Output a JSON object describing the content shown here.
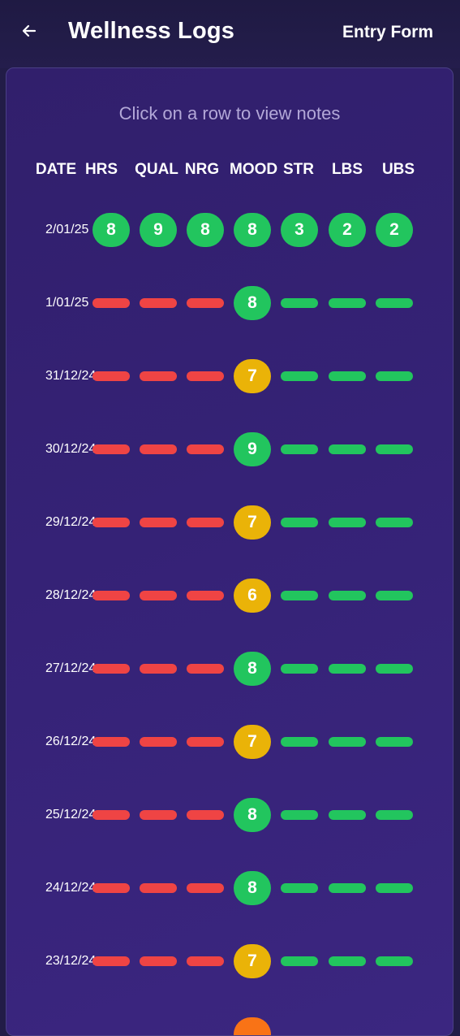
{
  "header": {
    "title": "Wellness Logs",
    "entry_label": "Entry Form",
    "back_icon": "arrow-left-icon"
  },
  "hint": "Click on a row to view notes",
  "columns": [
    "DATE",
    "HRS",
    "QUAL",
    "NRG",
    "MOOD",
    "STR",
    "LBS",
    "UBS"
  ],
  "colors": {
    "green": "#22c55e",
    "red": "#ef4444",
    "yellow": "#eab308",
    "orange": "#f97316"
  },
  "rows": [
    {
      "date": "2/01/25",
      "cells": [
        {
          "v": "8",
          "c": "green"
        },
        {
          "v": "9",
          "c": "green"
        },
        {
          "v": "8",
          "c": "green"
        },
        {
          "v": "8",
          "c": "green"
        },
        {
          "v": "3",
          "c": "green"
        },
        {
          "v": "2",
          "c": "green"
        },
        {
          "v": "2",
          "c": "green"
        }
      ]
    },
    {
      "date": "1/01/25",
      "cells": [
        {
          "v": null,
          "c": "red"
        },
        {
          "v": null,
          "c": "red"
        },
        {
          "v": null,
          "c": "red"
        },
        {
          "v": "8",
          "c": "green"
        },
        {
          "v": null,
          "c": "green"
        },
        {
          "v": null,
          "c": "green"
        },
        {
          "v": null,
          "c": "green"
        }
      ]
    },
    {
      "date": "31/12/24",
      "cells": [
        {
          "v": null,
          "c": "red"
        },
        {
          "v": null,
          "c": "red"
        },
        {
          "v": null,
          "c": "red"
        },
        {
          "v": "7",
          "c": "yellow"
        },
        {
          "v": null,
          "c": "green"
        },
        {
          "v": null,
          "c": "green"
        },
        {
          "v": null,
          "c": "green"
        }
      ]
    },
    {
      "date": "30/12/24",
      "cells": [
        {
          "v": null,
          "c": "red"
        },
        {
          "v": null,
          "c": "red"
        },
        {
          "v": null,
          "c": "red"
        },
        {
          "v": "9",
          "c": "green"
        },
        {
          "v": null,
          "c": "green"
        },
        {
          "v": null,
          "c": "green"
        },
        {
          "v": null,
          "c": "green"
        }
      ]
    },
    {
      "date": "29/12/24",
      "cells": [
        {
          "v": null,
          "c": "red"
        },
        {
          "v": null,
          "c": "red"
        },
        {
          "v": null,
          "c": "red"
        },
        {
          "v": "7",
          "c": "yellow"
        },
        {
          "v": null,
          "c": "green"
        },
        {
          "v": null,
          "c": "green"
        },
        {
          "v": null,
          "c": "green"
        }
      ]
    },
    {
      "date": "28/12/24",
      "cells": [
        {
          "v": null,
          "c": "red"
        },
        {
          "v": null,
          "c": "red"
        },
        {
          "v": null,
          "c": "red"
        },
        {
          "v": "6",
          "c": "yellow"
        },
        {
          "v": null,
          "c": "green"
        },
        {
          "v": null,
          "c": "green"
        },
        {
          "v": null,
          "c": "green"
        }
      ]
    },
    {
      "date": "27/12/24",
      "cells": [
        {
          "v": null,
          "c": "red"
        },
        {
          "v": null,
          "c": "red"
        },
        {
          "v": null,
          "c": "red"
        },
        {
          "v": "8",
          "c": "green"
        },
        {
          "v": null,
          "c": "green"
        },
        {
          "v": null,
          "c": "green"
        },
        {
          "v": null,
          "c": "green"
        }
      ]
    },
    {
      "date": "26/12/24",
      "cells": [
        {
          "v": null,
          "c": "red"
        },
        {
          "v": null,
          "c": "red"
        },
        {
          "v": null,
          "c": "red"
        },
        {
          "v": "7",
          "c": "yellow"
        },
        {
          "v": null,
          "c": "green"
        },
        {
          "v": null,
          "c": "green"
        },
        {
          "v": null,
          "c": "green"
        }
      ]
    },
    {
      "date": "25/12/24",
      "cells": [
        {
          "v": null,
          "c": "red"
        },
        {
          "v": null,
          "c": "red"
        },
        {
          "v": null,
          "c": "red"
        },
        {
          "v": "8",
          "c": "green"
        },
        {
          "v": null,
          "c": "green"
        },
        {
          "v": null,
          "c": "green"
        },
        {
          "v": null,
          "c": "green"
        }
      ]
    },
    {
      "date": "24/12/24",
      "cells": [
        {
          "v": null,
          "c": "red"
        },
        {
          "v": null,
          "c": "red"
        },
        {
          "v": null,
          "c": "red"
        },
        {
          "v": "8",
          "c": "green"
        },
        {
          "v": null,
          "c": "green"
        },
        {
          "v": null,
          "c": "green"
        },
        {
          "v": null,
          "c": "green"
        }
      ]
    },
    {
      "date": "23/12/24",
      "cells": [
        {
          "v": null,
          "c": "red"
        },
        {
          "v": null,
          "c": "red"
        },
        {
          "v": null,
          "c": "red"
        },
        {
          "v": "7",
          "c": "yellow"
        },
        {
          "v": null,
          "c": "green"
        },
        {
          "v": null,
          "c": "green"
        },
        {
          "v": null,
          "c": "green"
        }
      ]
    },
    {
      "date": "",
      "cells": [
        {
          "v": null,
          "c": null
        },
        {
          "v": null,
          "c": null
        },
        {
          "v": null,
          "c": null
        },
        {
          "v": "",
          "c": "orange"
        },
        {
          "v": null,
          "c": null
        },
        {
          "v": null,
          "c": null
        },
        {
          "v": null,
          "c": null
        }
      ]
    }
  ]
}
